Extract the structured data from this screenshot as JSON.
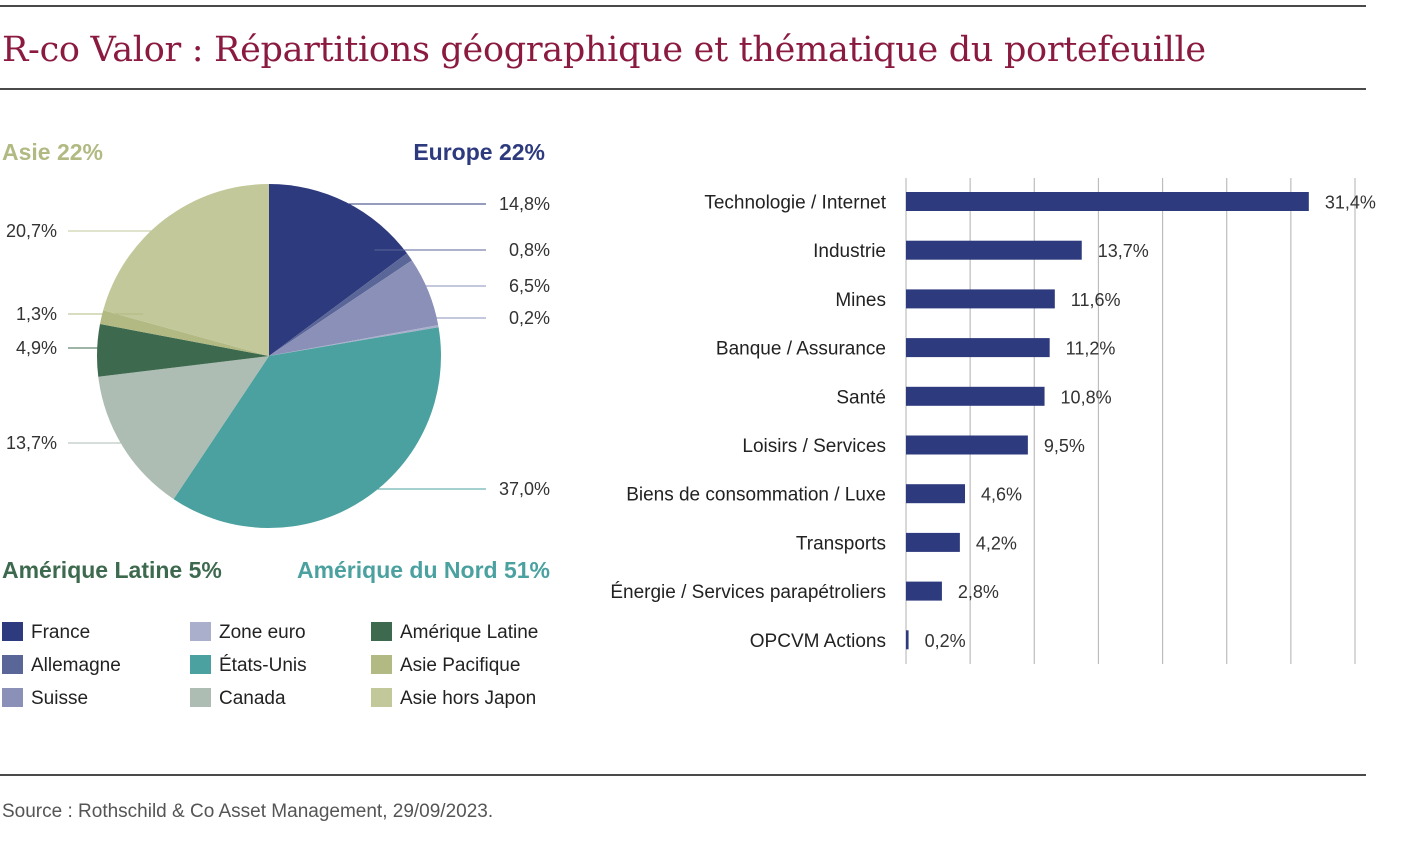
{
  "title": "R-co Valor : Répartitions géographique et thématique du portefeuille",
  "source": "Source : Rothschild & Co Asset Management, 29/09/2023.",
  "colors": {
    "title": "#8b1a3f",
    "france": "#2e3a7e",
    "allemagne": "#5b6698",
    "suisse": "#8a90b8",
    "zone_euro": "#aab0cc",
    "etats_unis": "#4ba1a0",
    "canada": "#adbdb4",
    "amerique_latine": "#3d6a4e",
    "asie_pacifique": "#b2b982",
    "asie_hors_japon": "#c2c89a",
    "bar": "#2e3a7e"
  },
  "regions": {
    "asie": {
      "label": "Asie 22%",
      "color": "#b2b982"
    },
    "europe": {
      "label": "Europe 22%",
      "color": "#2e3a7e"
    },
    "amerique_latine": {
      "label": "Amérique Latine 5%",
      "color": "#3d6a4e"
    },
    "amerique_nord": {
      "label": "Amérique du Nord 51%",
      "color": "#4ba1a0"
    }
  },
  "legend": [
    {
      "label": "France",
      "color": "#2e3a7e"
    },
    {
      "label": "Zone euro",
      "color": "#aab0cc"
    },
    {
      "label": "Amérique Latine",
      "color": "#3d6a4e"
    },
    {
      "label": "Allemagne",
      "color": "#5b6698"
    },
    {
      "label": "États-Unis",
      "color": "#4ba1a0"
    },
    {
      "label": "Asie Pacifique",
      "color": "#b2b982"
    },
    {
      "label": "Suisse",
      "color": "#8a90b8"
    },
    {
      "label": "Canada",
      "color": "#adbdb4"
    },
    {
      "label": "Asie hors Japon",
      "color": "#c2c89a"
    }
  ],
  "chart_data": [
    {
      "type": "pie",
      "slices": [
        {
          "name": "France",
          "value": 14.8,
          "label": "14,8%",
          "color": "#2e3a7e"
        },
        {
          "name": "Allemagne",
          "value": 0.8,
          "label": "0,8%",
          "color": "#5b6698"
        },
        {
          "name": "Suisse",
          "value": 6.5,
          "label": "6,5%",
          "color": "#8a90b8"
        },
        {
          "name": "Zone euro",
          "value": 0.2,
          "label": "0,2%",
          "color": "#aab0cc"
        },
        {
          "name": "États-Unis",
          "value": 37.0,
          "label": "37,0%",
          "color": "#4ba1a0"
        },
        {
          "name": "Canada",
          "value": 13.7,
          "label": "13,7%",
          "color": "#adbdb4"
        },
        {
          "name": "Amérique Latine",
          "value": 4.9,
          "label": "4,9%",
          "color": "#3d6a4e"
        },
        {
          "name": "Asie Pacifique",
          "value": 1.3,
          "label": "1,3%",
          "color": "#b2b982"
        },
        {
          "name": "Asie hors Japon",
          "value": 20.7,
          "label": "20,7%",
          "color": "#c2c89a"
        }
      ]
    },
    {
      "type": "bar",
      "orientation": "horizontal",
      "categories": [
        "Technologie / Internet",
        "Industrie",
        "Mines",
        "Banque / Assurance",
        "Santé",
        "Loisirs / Services",
        "Biens de consommation / Luxe",
        "Transports",
        "Énergie / Services parapétroliers",
        "OPCVM Actions"
      ],
      "values": [
        31.4,
        13.7,
        11.6,
        11.2,
        10.8,
        9.5,
        4.6,
        4.2,
        2.8,
        0.2
      ],
      "value_labels": [
        "31,4%",
        "13,7%",
        "11,6%",
        "11,2%",
        "10,8%",
        "9,5%",
        "4,6%",
        "4,2%",
        "2,8%",
        "0,2%"
      ],
      "xlim": [
        0,
        35
      ],
      "grid": true,
      "color": "#2e3a7e"
    }
  ]
}
